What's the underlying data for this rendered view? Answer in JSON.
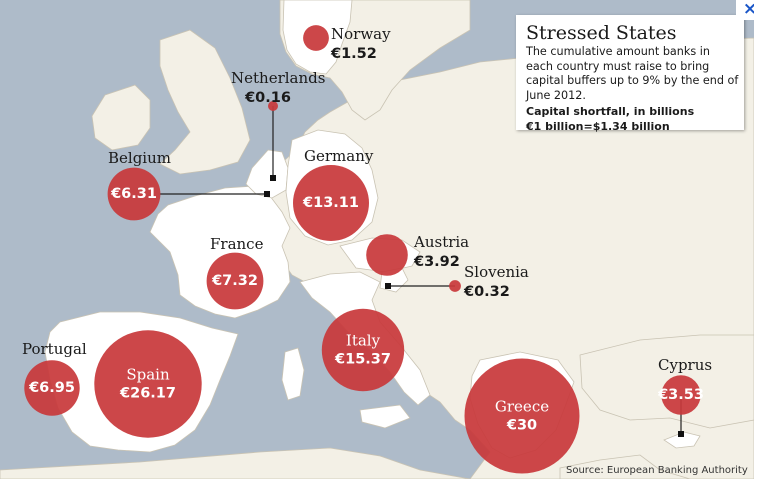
{
  "panel": {
    "title": "Stressed States",
    "description": "The cumulative amount banks in each country must raise to bring capital buffers up to 9% by the end of June 2012.",
    "unit_note": "Capital shortfall, in billions",
    "exchange_note": "€1 billion=$1.34 billion"
  },
  "close_label": "×",
  "source": "Source: European Banking Authority",
  "colors": {
    "circle": "#c8393b",
    "sea": "#aebbc9",
    "land": "#f3f0e6",
    "highlight": "#ffffff",
    "leader": "#222222"
  },
  "countries": [
    {
      "name": "Norway",
      "value": "€1.52",
      "amount": 1.52
    },
    {
      "name": "Netherlands",
      "value": "€0.16",
      "amount": 0.16
    },
    {
      "name": "Belgium",
      "value": "€6.31",
      "amount": 6.31
    },
    {
      "name": "Germany",
      "value": "€13.11",
      "amount": 13.11
    },
    {
      "name": "Austria",
      "value": "€3.92",
      "amount": 3.92
    },
    {
      "name": "Slovenia",
      "value": "€0.32",
      "amount": 0.32
    },
    {
      "name": "France",
      "value": "€7.32",
      "amount": 7.32
    },
    {
      "name": "Italy",
      "value": "€15.37",
      "amount": 15.37
    },
    {
      "name": "Portugal",
      "value": "€6.95",
      "amount": 6.95
    },
    {
      "name": "Spain",
      "value": "€26.17",
      "amount": 26.17
    },
    {
      "name": "Greece",
      "value": "€30",
      "amount": 30
    },
    {
      "name": "Cyprus",
      "value": "€3.53",
      "amount": 3.53
    }
  ]
}
